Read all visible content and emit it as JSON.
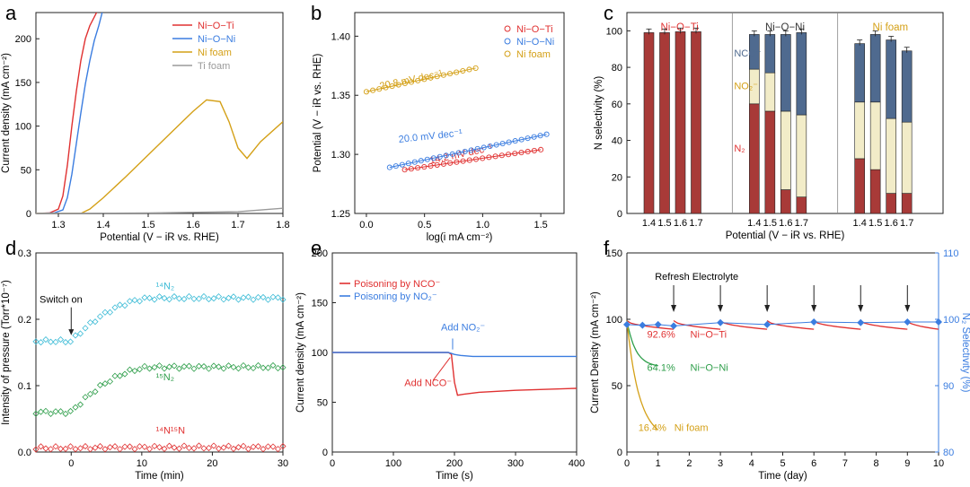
{
  "colors": {
    "niOTi": "#e03131",
    "niONi": "#3b7de0",
    "niFoam": "#d4a017",
    "tiFoam": "#9a9a9a",
    "green": "#2e9e4a",
    "cyan": "#3bbbd6",
    "n2bar": "#a83a38",
    "no2bar": "#f2ecc8",
    "ncobar": "#4f6a8f",
    "axisBlue": "#3b7de0"
  },
  "chart_data": [
    {
      "panel": "a",
      "type": "line",
      "xlabel": "Potential (V − iR vs. RHE)",
      "ylabel": "Current density (mA cm⁻²)",
      "xlim": [
        1.25,
        1.8
      ],
      "ylim": [
        0,
        230
      ],
      "xticks": [
        "1.3",
        "1.4",
        "1.5",
        "1.6",
        "1.7",
        "1.8"
      ],
      "yticks": [
        "0",
        "50",
        "100",
        "150",
        "200"
      ],
      "legend": [
        "Ni−O−Ti",
        "Ni−O−Ni",
        "Ni foam",
        "Ti foam"
      ],
      "series": [
        {
          "name": "Ni−O−Ti",
          "color": "niOTi",
          "x": [
            1.25,
            1.28,
            1.3,
            1.31,
            1.32,
            1.33,
            1.34,
            1.35,
            1.36,
            1.37,
            1.38,
            1.39
          ],
          "y": [
            0,
            0.5,
            5,
            20,
            55,
            100,
            140,
            175,
            200,
            215,
            225,
            235
          ]
        },
        {
          "name": "Ni−O−Ni",
          "color": "niONi",
          "x": [
            1.25,
            1.29,
            1.31,
            1.32,
            1.33,
            1.34,
            1.35,
            1.36,
            1.37,
            1.38,
            1.39,
            1.4
          ],
          "y": [
            0,
            0.5,
            4,
            18,
            45,
            80,
            115,
            148,
            175,
            198,
            215,
            235
          ]
        },
        {
          "name": "Ni foam",
          "color": "niFoam",
          "x": [
            1.25,
            1.35,
            1.37,
            1.4,
            1.45,
            1.5,
            1.55,
            1.6,
            1.63,
            1.66,
            1.68,
            1.7,
            1.72,
            1.75,
            1.8
          ],
          "y": [
            0,
            0,
            5,
            18,
            42,
            67,
            92,
            117,
            130,
            128,
            105,
            75,
            63,
            82,
            105
          ]
        },
        {
          "name": "Ti foam",
          "color": "tiFoam",
          "x": [
            1.25,
            1.5,
            1.7,
            1.8
          ],
          "y": [
            0,
            0.5,
            2,
            6
          ]
        }
      ]
    },
    {
      "panel": "b",
      "type": "scatter",
      "xlabel": "log(i mA cm⁻²)",
      "ylabel": "Potential (V − iR vs. RHE)",
      "xlim": [
        -0.1,
        1.7
      ],
      "ylim": [
        1.25,
        1.42
      ],
      "xticks": [
        "0.0",
        "0.5",
        "1.0",
        "1.5"
      ],
      "yticks": [
        "1.25",
        "1.30",
        "1.35",
        "1.40"
      ],
      "legend": [
        "Ni−O−Ti",
        "Ni−O−Ni",
        "Ni foam"
      ],
      "series": [
        {
          "name": "Ni−O−Ti",
          "color": "niOTi",
          "x0": 0.33,
          "x1": 1.5,
          "y0": 1.287,
          "y1": 1.304,
          "n": 22,
          "slope_label": "14.2 mV dec⁻¹"
        },
        {
          "name": "Ni−O−Ni",
          "color": "niONi",
          "x0": 0.2,
          "x1": 1.55,
          "y0": 1.289,
          "y1": 1.317,
          "n": 26,
          "slope_label": "20.0 mV dec⁻¹"
        },
        {
          "name": "Ni foam",
          "color": "niFoam",
          "x0": 0.0,
          "x1": 0.94,
          "y0": 1.353,
          "y1": 1.373,
          "n": 18,
          "slope_label": "20.8 mV dec⁻¹"
        }
      ]
    },
    {
      "panel": "c",
      "type": "bar",
      "ylabel": "N selectivity (%)",
      "xlabel": "Potential (V − iR vs. RHE)",
      "ylim": [
        0,
        110
      ],
      "yticks": [
        "0",
        "20",
        "40",
        "60",
        "80",
        "100"
      ],
      "categories": [
        "1.4",
        "1.5",
        "1.6",
        "1.7"
      ],
      "groups": [
        {
          "name": "Ni−O−Ti",
          "n2": [
            99,
            99,
            99.5,
            99.5
          ],
          "no2": [
            0,
            0,
            0,
            0
          ],
          "nco": [
            0,
            0,
            0,
            0
          ]
        },
        {
          "name": "Ni−O−Ni",
          "n2": [
            60,
            56,
            13,
            9
          ],
          "no2": [
            19,
            21,
            43,
            45
          ],
          "nco": [
            19,
            21,
            42,
            45
          ]
        },
        {
          "name": "Ni foam",
          "n2": [
            30,
            24,
            11,
            11
          ],
          "no2": [
            31,
            37,
            41,
            39
          ],
          "nco": [
            32,
            37,
            43,
            39
          ]
        }
      ],
      "labels": {
        "nco": "NCO⁻",
        "no2": "NO₂⁻",
        "n2": "N₂"
      }
    },
    {
      "panel": "d",
      "type": "scatter",
      "xlabel": "Time (min)",
      "ylabel": "Intensity of pressure (Torr*10⁻⁷)",
      "xlim": [
        -5,
        30
      ],
      "ylim": [
        0,
        0.3
      ],
      "xticks": [
        "0",
        "10",
        "20",
        "30"
      ],
      "yticks": [
        "0.0",
        "0.1",
        "0.2",
        "0.3"
      ],
      "annotation": "Switch on",
      "series": [
        {
          "name": "¹⁴N₂",
          "color": "cyan",
          "before": 0.167,
          "after": 0.232
        },
        {
          "name": "¹⁵N₂",
          "color": "green",
          "before": 0.06,
          "after": 0.128
        },
        {
          "name": "¹⁴N¹⁵N",
          "color": "niOTi",
          "before": 0.006,
          "after": 0.007
        }
      ]
    },
    {
      "panel": "e",
      "type": "line",
      "xlabel": "Time (s)",
      "ylabel": "Current density (mA cm⁻²)",
      "xlim": [
        0,
        400
      ],
      "ylim": [
        0,
        200
      ],
      "xticks": [
        "0",
        "100",
        "200",
        "300",
        "400"
      ],
      "yticks": [
        "0",
        "50",
        "100",
        "150",
        "200"
      ],
      "legend": [
        "Poisoning by NCO⁻",
        "Poisoning by NO₂⁻"
      ],
      "annotations": [
        "Add NO₂⁻",
        "Add NCO⁻"
      ],
      "series": [
        {
          "name": "Poisoning by NCO⁻",
          "color": "niOTi",
          "x": [
            0,
            190,
            195,
            200,
            205,
            215,
            240,
            300,
            400
          ],
          "y": [
            100,
            100,
            98,
            70,
            57,
            58,
            60,
            62,
            64
          ]
        },
        {
          "name": "Poisoning by NO₂⁻",
          "color": "niONi",
          "x": [
            0,
            190,
            195,
            200,
            210,
            230,
            300,
            400
          ],
          "y": [
            100,
            100,
            99,
            98,
            97,
            96,
            96,
            96
          ]
        }
      ]
    },
    {
      "panel": "f",
      "type": "line",
      "xlabel": "Time (day)",
      "ylabel": "Current Density (mA cm⁻²)",
      "y2label": "N₂ Selectivity (%)",
      "xlim": [
        0,
        10
      ],
      "ylim": [
        0,
        150
      ],
      "y2lim": [
        80,
        110
      ],
      "xticks": [
        "0",
        "1",
        "2",
        "3",
        "4",
        "5",
        "6",
        "7",
        "8",
        "9",
        "10"
      ],
      "yticks": [
        "0",
        "50",
        "100",
        "150"
      ],
      "y2ticks": [
        "80",
        "90",
        "100",
        "110"
      ],
      "annotation": "Refresh Electrolyte",
      "refresh_days": [
        1.5,
        3,
        4.5,
        6,
        7.5,
        9
      ],
      "labels": [
        {
          "value": "92.6%",
          "name": "Ni−O−Ti"
        },
        {
          "value": "64.1%",
          "name": "Ni−O−Ni"
        },
        {
          "value": "16.4%",
          "name": "Ni foam"
        }
      ],
      "selectivity": {
        "x": [
          0,
          0.5,
          1,
          1.5,
          3,
          4.5,
          6,
          7.5,
          9,
          10
        ],
        "y": [
          99.2,
          99.1,
          99.2,
          99.0,
          99.5,
          99.2,
          99.6,
          99.5,
          99.6,
          99.6
        ]
      }
    }
  ],
  "panel_letters": [
    "a",
    "b",
    "c",
    "d",
    "e",
    "f"
  ]
}
